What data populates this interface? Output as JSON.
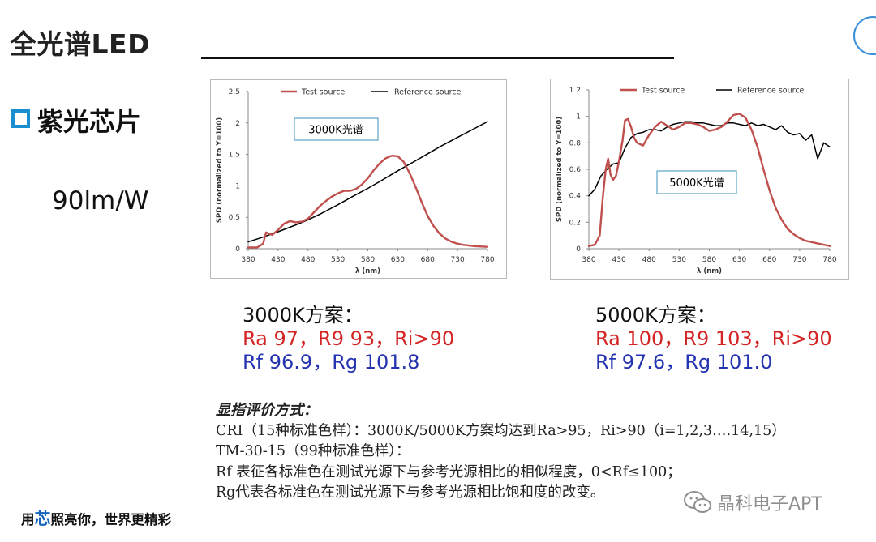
{
  "slide": {
    "title": "全光谱LED",
    "bullet": "紫光芯片",
    "efficacy": "90lm/W"
  },
  "chart_data": [
    {
      "type": "line",
      "annotation": "3000K光谱",
      "legend": [
        "Test source",
        "Reference source"
      ],
      "xlabel": "λ (nm)",
      "ylabel": "SPD (normalized to Y=100)",
      "xlim": [
        380,
        780
      ],
      "ylim": [
        0,
        2.5
      ],
      "x_ticks": [
        "380",
        "430",
        "480",
        "530",
        "580",
        "630",
        "680",
        "730",
        "780"
      ],
      "y_ticks": [
        "0",
        "0.5",
        "1",
        "1.5",
        "2",
        "2.5"
      ],
      "series": [
        {
          "name": "Test source",
          "color": "#c0504d",
          "x": [
            380,
            395,
            405,
            410,
            415,
            420,
            430,
            440,
            450,
            460,
            470,
            480,
            490,
            500,
            510,
            520,
            530,
            540,
            550,
            560,
            570,
            580,
            590,
            600,
            610,
            620,
            630,
            640,
            650,
            660,
            670,
            680,
            690,
            700,
            710,
            720,
            730,
            740,
            760,
            780
          ],
          "y": [
            0.02,
            0.02,
            0.08,
            0.26,
            0.24,
            0.22,
            0.3,
            0.4,
            0.44,
            0.42,
            0.43,
            0.48,
            0.58,
            0.68,
            0.76,
            0.83,
            0.88,
            0.92,
            0.92,
            0.95,
            1.02,
            1.12,
            1.25,
            1.36,
            1.44,
            1.48,
            1.47,
            1.38,
            1.2,
            0.98,
            0.74,
            0.52,
            0.36,
            0.24,
            0.16,
            0.11,
            0.08,
            0.06,
            0.04,
            0.03
          ]
        },
        {
          "name": "Reference source",
          "color": "#000000",
          "x": [
            380,
            400,
            430,
            460,
            480,
            500,
            530,
            560,
            580,
            600,
            630,
            660,
            680,
            700,
            730,
            760,
            780
          ],
          "y": [
            0.11,
            0.17,
            0.27,
            0.38,
            0.46,
            0.55,
            0.7,
            0.86,
            0.96,
            1.07,
            1.24,
            1.4,
            1.51,
            1.62,
            1.77,
            1.92,
            2.02
          ]
        }
      ]
    },
    {
      "type": "line",
      "annotation": "5000K光谱",
      "legend": [
        "Test source",
        "Reference source"
      ],
      "xlabel": "λ (nm)",
      "ylabel": "SPD (normalized to Y=100)",
      "xlim": [
        380,
        780
      ],
      "ylim": [
        0,
        1.2
      ],
      "x_ticks": [
        "380",
        "430",
        "480",
        "530",
        "580",
        "630",
        "680",
        "730",
        "780"
      ],
      "y_ticks": [
        "0",
        "0.2",
        "0.4",
        "0.6",
        "0.8",
        "1",
        "1.2"
      ],
      "series": [
        {
          "name": "Test source",
          "color": "#c0504d",
          "x": [
            380,
            390,
            398,
            403,
            408,
            412,
            416,
            420,
            425,
            430,
            436,
            440,
            445,
            450,
            455,
            460,
            470,
            480,
            490,
            500,
            510,
            520,
            530,
            540,
            550,
            560,
            570,
            580,
            590,
            600,
            610,
            620,
            630,
            640,
            650,
            660,
            670,
            680,
            690,
            700,
            710,
            720,
            730,
            740,
            760,
            780
          ],
          "y": [
            0.02,
            0.03,
            0.1,
            0.38,
            0.6,
            0.68,
            0.56,
            0.52,
            0.55,
            0.66,
            0.82,
            0.97,
            0.98,
            0.92,
            0.84,
            0.8,
            0.78,
            0.86,
            0.92,
            0.96,
            0.93,
            0.9,
            0.92,
            0.95,
            0.95,
            0.94,
            0.92,
            0.89,
            0.9,
            0.92,
            0.96,
            1.01,
            1.02,
            0.99,
            0.9,
            0.77,
            0.6,
            0.44,
            0.31,
            0.22,
            0.15,
            0.11,
            0.08,
            0.06,
            0.04,
            0.02
          ]
        },
        {
          "name": "Reference source",
          "color": "#000000",
          "x": [
            380,
            390,
            400,
            410,
            420,
            430,
            440,
            450,
            460,
            470,
            480,
            490,
            500,
            510,
            520,
            530,
            540,
            550,
            560,
            570,
            580,
            590,
            600,
            610,
            620,
            630,
            640,
            650,
            660,
            670,
            680,
            690,
            700,
            710,
            720,
            730,
            740,
            750,
            760,
            770,
            780
          ],
          "y": [
            0.4,
            0.45,
            0.55,
            0.6,
            0.64,
            0.65,
            0.76,
            0.84,
            0.87,
            0.88,
            0.9,
            0.9,
            0.89,
            0.92,
            0.94,
            0.95,
            0.96,
            0.96,
            0.95,
            0.95,
            0.94,
            0.93,
            0.93,
            0.95,
            0.95,
            0.94,
            0.93,
            0.95,
            0.93,
            0.94,
            0.92,
            0.9,
            0.93,
            0.88,
            0.86,
            0.87,
            0.82,
            0.86,
            0.68,
            0.8,
            0.77
          ]
        }
      ]
    }
  ],
  "schemes": [
    {
      "heading": "3000K方案：",
      "cri": "Ra 97，R9 93，Ri>90",
      "tm30": "Rf 96.9，Rg 101.8"
    },
    {
      "heading": "5000K方案：",
      "cri": "Ra 100，R9 103，Ri>90",
      "tm30": "Rf 97.6，Rg 101.0"
    }
  ],
  "notes": {
    "title": "显指评价方式：",
    "lines": [
      "CRI（15种标准色样）：3000K/5000K方案均达到Ra>95，Ri>90（i=1,2,3….14,15）",
      "TM-30-15（99种标准色样）：",
      "Rf 表征各标准色在测试光源下与参考光源相比的相似程度，0<Rf≤100；",
      "Rg代表各标准色在测试光源下与参考光源相比饱和度的改变。"
    ]
  },
  "footer": {
    "slogan_pre": "用",
    "slogan_highlight": "芯",
    "slogan_post": "照亮你，世界更精彩",
    "watermark": "晶科电子APT"
  },
  "colors": {
    "accent_blue": "#1a8fd0",
    "red_text": "#d42424",
    "blue_text": "#2433b0",
    "test_curve": "#c0504d",
    "ref_curve": "#000000"
  }
}
